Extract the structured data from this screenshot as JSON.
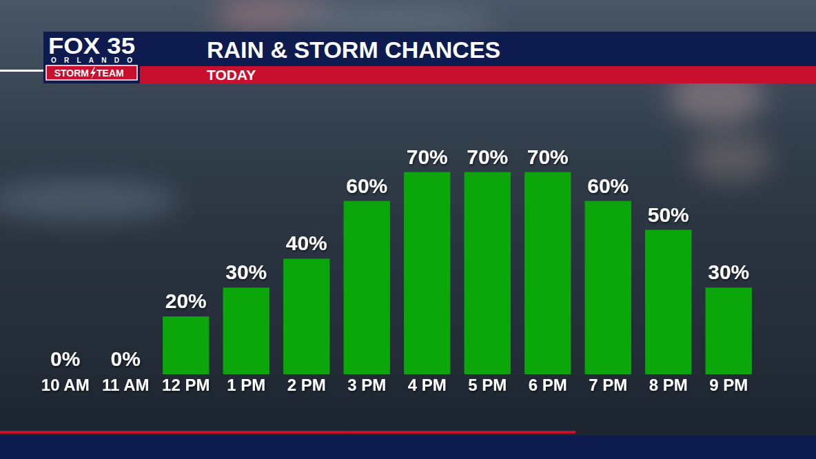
{
  "chart_data": {
    "type": "bar",
    "title": "RAIN & STORM CHANCES",
    "subtitle": "TODAY",
    "annotations": [
      "FOX 35",
      "ORLANDO",
      "STORM",
      "TEAM"
    ],
    "categories": [
      "10 AM",
      "11 AM",
      "12 PM",
      "1 PM",
      "2 PM",
      "3 PM",
      "4 PM",
      "5 PM",
      "6 PM",
      "7 PM",
      "8 PM",
      "9 PM"
    ],
    "values": [
      0,
      0,
      20,
      30,
      40,
      60,
      70,
      70,
      70,
      60,
      50,
      30
    ],
    "value_labels": [
      "0%",
      "0%",
      "20%",
      "30%",
      "40%",
      "60%",
      "70%",
      "70%",
      "70%",
      "60%",
      "50%",
      "30%"
    ],
    "color": "#0aa60a",
    "ylim": [
      0,
      100
    ],
    "data_labels": true,
    "tick_labels": "x",
    "grid": false
  }
}
